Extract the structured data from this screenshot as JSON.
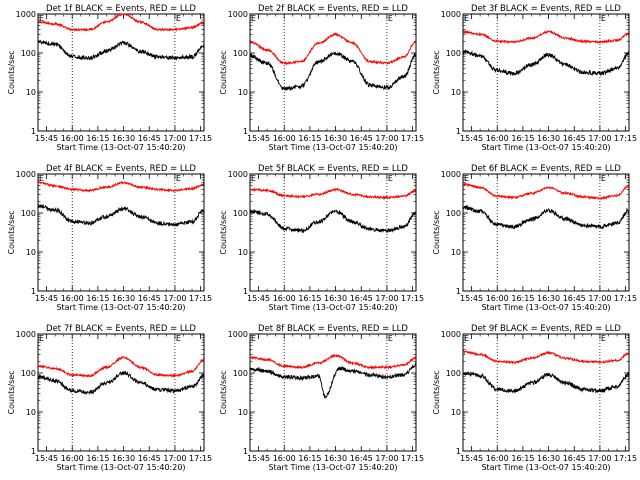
{
  "chart_data": [
    {
      "type": "line",
      "title": "Det 1f BLACK = Events, RED = LLD",
      "xlabel": "Start Time (13-Oct-07 15:40:20)",
      "ylabel": "Counts/sec",
      "x_ticks": [
        "15:45",
        "16:00",
        "16:15",
        "16:30",
        "16:45",
        "17:00",
        "17:15"
      ],
      "y_ticks": [
        "1",
        "10",
        "100",
        "1000"
      ],
      "ylim": [
        1,
        1000
      ],
      "yscale": "log",
      "markers": [
        {
          "time": "15:40",
          "label": "E"
        },
        {
          "time": "17:00",
          "label": "E"
        }
      ],
      "series": [
        {
          "color": "#ff0000",
          "x": [
            "15:40",
            "15:50",
            "16:00",
            "16:10",
            "16:20",
            "16:30",
            "16:40",
            "16:50",
            "17:00",
            "17:10",
            "17:17"
          ],
          "y": [
            620,
            560,
            400,
            400,
            620,
            1000,
            620,
            400,
            400,
            450,
            600
          ]
        },
        {
          "color": "#000000",
          "x": [
            "15:40",
            "15:50",
            "16:00",
            "16:10",
            "16:20",
            "16:30",
            "16:40",
            "16:50",
            "17:00",
            "17:10",
            "17:17"
          ],
          "y": [
            190,
            170,
            80,
            75,
            110,
            180,
            110,
            80,
            75,
            80,
            150
          ]
        }
      ]
    },
    {
      "type": "line",
      "title": "Det 2f BLACK = Events, RED = LLD",
      "xlabel": "Start Time (13-Oct-07 15:40:20)",
      "ylabel": "Counts/sec",
      "x_ticks": [
        "15:45",
        "16:00",
        "16:15",
        "16:30",
        "16:45",
        "17:00",
        "17:15"
      ],
      "y_ticks": [
        "1",
        "10",
        "100",
        "1000"
      ],
      "ylim": [
        1,
        1000
      ],
      "yscale": "log",
      "markers": [
        {
          "time": "15:40",
          "label": "E"
        },
        {
          "time": "17:00",
          "label": "E"
        }
      ],
      "series": [
        {
          "color": "#ff0000",
          "x": [
            "15:40",
            "15:50",
            "16:00",
            "16:10",
            "16:20",
            "16:30",
            "16:40",
            "16:50",
            "17:00",
            "17:10",
            "17:17"
          ],
          "y": [
            190,
            120,
            55,
            60,
            180,
            300,
            180,
            60,
            55,
            80,
            200
          ]
        },
        {
          "color": "#000000",
          "x": [
            "15:40",
            "15:50",
            "16:00",
            "16:10",
            "16:20",
            "16:30",
            "16:40",
            "16:50",
            "17:00",
            "17:10",
            "17:17"
          ],
          "y": [
            85,
            55,
            12,
            14,
            60,
            100,
            60,
            15,
            13,
            25,
            90
          ]
        }
      ]
    },
    {
      "type": "line",
      "title": "Det 3f BLACK = Events, RED = LLD",
      "xlabel": "Start Time (13-Oct-07 15:40:20)",
      "ylabel": "Counts/sec",
      "x_ticks": [
        "15:45",
        "16:00",
        "16:15",
        "16:30",
        "16:45",
        "17:00",
        "17:15"
      ],
      "y_ticks": [
        "1",
        "10",
        "100",
        "1000"
      ],
      "ylim": [
        1,
        1000
      ],
      "yscale": "log",
      "markers": [
        {
          "time": "15:40",
          "label": "E"
        },
        {
          "time": "17:00",
          "label": "E"
        }
      ],
      "series": [
        {
          "color": "#ff0000",
          "x": [
            "15:40",
            "15:50",
            "16:00",
            "16:10",
            "16:20",
            "16:30",
            "16:40",
            "16:50",
            "17:00",
            "17:10",
            "17:17"
          ],
          "y": [
            350,
            300,
            200,
            190,
            240,
            350,
            240,
            200,
            190,
            210,
            320
          ]
        },
        {
          "color": "#000000",
          "x": [
            "15:40",
            "15:50",
            "16:00",
            "16:10",
            "16:20",
            "16:30",
            "16:40",
            "16:50",
            "17:00",
            "17:10",
            "17:17"
          ],
          "y": [
            110,
            85,
            35,
            30,
            50,
            90,
            50,
            32,
            30,
            40,
            100
          ]
        }
      ]
    },
    {
      "type": "line",
      "title": "Det 4f BLACK = Events, RED = LLD",
      "xlabel": "Start Time (13-Oct-07 15:40:20)",
      "ylabel": "Counts/sec",
      "x_ticks": [
        "15:45",
        "16:00",
        "16:15",
        "16:30",
        "16:45",
        "17:00",
        "17:15"
      ],
      "y_ticks": [
        "1",
        "10",
        "100",
        "1000"
      ],
      "ylim": [
        1,
        1000
      ],
      "yscale": "log",
      "markers": [
        {
          "time": "15:40",
          "label": "E"
        },
        {
          "time": "17:00",
          "label": "E"
        }
      ],
      "series": [
        {
          "color": "#ff0000",
          "x": [
            "15:40",
            "15:50",
            "16:00",
            "16:10",
            "16:20",
            "16:30",
            "16:40",
            "16:50",
            "17:00",
            "17:10",
            "17:17"
          ],
          "y": [
            600,
            500,
            400,
            380,
            460,
            600,
            460,
            400,
            380,
            420,
            550
          ]
        },
        {
          "color": "#000000",
          "x": [
            "15:40",
            "15:50",
            "16:00",
            "16:10",
            "16:20",
            "16:30",
            "16:40",
            "16:50",
            "17:00",
            "17:10",
            "17:17"
          ],
          "y": [
            150,
            120,
            60,
            55,
            80,
            130,
            80,
            55,
            50,
            60,
            120
          ]
        }
      ]
    },
    {
      "type": "line",
      "title": "Det 5f BLACK = Events, RED = LLD",
      "xlabel": "Start Time (13-Oct-07 15:40:20)",
      "ylabel": "Counts/sec",
      "x_ticks": [
        "15:45",
        "16:00",
        "16:15",
        "16:30",
        "16:45",
        "17:00",
        "17:15"
      ],
      "y_ticks": [
        "1",
        "10",
        "100",
        "1000"
      ],
      "ylim": [
        1,
        1000
      ],
      "yscale": "log",
      "markers": [
        {
          "time": "15:40",
          "label": "E"
        },
        {
          "time": "17:00",
          "label": "E"
        }
      ],
      "series": [
        {
          "color": "#ff0000",
          "x": [
            "15:40",
            "15:50",
            "16:00",
            "16:10",
            "16:20",
            "16:30",
            "16:40",
            "16:50",
            "17:00",
            "17:10",
            "17:17"
          ],
          "y": [
            400,
            380,
            280,
            260,
            300,
            400,
            300,
            260,
            250,
            270,
            380
          ]
        },
        {
          "color": "#000000",
          "x": [
            "15:40",
            "15:50",
            "16:00",
            "16:10",
            "16:20",
            "16:30",
            "16:40",
            "16:50",
            "17:00",
            "17:10",
            "17:17"
          ],
          "y": [
            110,
            95,
            40,
            35,
            60,
            110,
            60,
            38,
            35,
            45,
            100
          ]
        }
      ]
    },
    {
      "type": "line",
      "title": "Det 6f BLACK = Events, RED = LLD",
      "xlabel": "Start Time (13-Oct-07 15:40:20)",
      "ylabel": "Counts/sec",
      "x_ticks": [
        "15:45",
        "16:00",
        "16:15",
        "16:30",
        "16:45",
        "17:00",
        "17:15"
      ],
      "y_ticks": [
        "1",
        "10",
        "100",
        "1000"
      ],
      "ylim": [
        1,
        1000
      ],
      "yscale": "log",
      "markers": [
        {
          "time": "15:40",
          "label": "E"
        },
        {
          "time": "17:00",
          "label": "E"
        }
      ],
      "series": [
        {
          "color": "#ff0000",
          "x": [
            "15:40",
            "15:50",
            "16:00",
            "16:10",
            "16:20",
            "16:30",
            "16:40",
            "16:50",
            "17:00",
            "17:10",
            "17:17"
          ],
          "y": [
            550,
            450,
            270,
            250,
            320,
            450,
            320,
            260,
            240,
            280,
            500
          ]
        },
        {
          "color": "#000000",
          "x": [
            "15:40",
            "15:50",
            "16:00",
            "16:10",
            "16:20",
            "16:30",
            "16:40",
            "16:50",
            "17:00",
            "17:10",
            "17:17"
          ],
          "y": [
            140,
            110,
            50,
            45,
            70,
            115,
            70,
            48,
            45,
            55,
            120
          ]
        }
      ]
    },
    {
      "type": "line",
      "title": "Det 7f BLACK = Events, RED = LLD",
      "xlabel": "Start Time (13-Oct-07 15:40:20)",
      "ylabel": "Counts/sec",
      "x_ticks": [
        "15:45",
        "16:00",
        "16:15",
        "16:30",
        "16:45",
        "17:00",
        "17:15"
      ],
      "y_ticks": [
        "1",
        "10",
        "100",
        "1000"
      ],
      "ylim": [
        1,
        1000
      ],
      "yscale": "log",
      "markers": [
        {
          "time": "15:40",
          "label": "E"
        },
        {
          "time": "17:00",
          "label": "E"
        }
      ],
      "series": [
        {
          "color": "#ff0000",
          "x": [
            "15:40",
            "15:50",
            "16:00",
            "16:10",
            "16:20",
            "16:30",
            "16:40",
            "16:50",
            "17:00",
            "17:10",
            "17:17"
          ],
          "y": [
            150,
            130,
            90,
            85,
            140,
            250,
            140,
            90,
            85,
            110,
            220
          ]
        },
        {
          "color": "#000000",
          "x": [
            "15:40",
            "15:50",
            "16:00",
            "16:10",
            "16:20",
            "16:30",
            "16:40",
            "16:50",
            "17:00",
            "17:10",
            "17:17"
          ],
          "y": [
            80,
            65,
            35,
            32,
            55,
            100,
            55,
            38,
            35,
            45,
            85
          ]
        }
      ]
    },
    {
      "type": "line",
      "title": "Det 8f BLACK = Events, RED = LLD",
      "xlabel": "Start Time (13-Oct-07 15:40:20)",
      "ylabel": "Counts/sec",
      "x_ticks": [
        "15:45",
        "16:00",
        "16:15",
        "16:30",
        "16:45",
        "17:00",
        "17:15"
      ],
      "y_ticks": [
        "1",
        "10",
        "100",
        "1000"
      ],
      "ylim": [
        1,
        1000
      ],
      "yscale": "log",
      "markers": [
        {
          "time": "15:40",
          "label": "E"
        },
        {
          "time": "17:00",
          "label": "E"
        }
      ],
      "series": [
        {
          "color": "#ff0000",
          "x": [
            "15:40",
            "15:50",
            "16:00",
            "16:10",
            "16:20",
            "16:30",
            "16:40",
            "16:50",
            "17:00",
            "17:10",
            "17:17"
          ],
          "y": [
            250,
            220,
            150,
            140,
            180,
            280,
            180,
            140,
            140,
            160,
            250
          ]
        },
        {
          "color": "#000000",
          "x": [
            "15:40",
            "15:50",
            "16:00",
            "16:10",
            "16:20",
            "16:24",
            "16:32",
            "16:40",
            "16:50",
            "17:00",
            "17:10",
            "17:17"
          ],
          "y": [
            130,
            110,
            80,
            75,
            85,
            25,
            130,
            110,
            90,
            80,
            90,
            160
          ]
        }
      ]
    },
    {
      "type": "line",
      "title": "Det 9f BLACK = Events, RED = LLD",
      "xlabel": "Start Time (13-Oct-07 15:40:20)",
      "ylabel": "Counts/sec",
      "x_ticks": [
        "15:45",
        "16:00",
        "16:15",
        "16:30",
        "16:45",
        "17:00",
        "17:15"
      ],
      "y_ticks": [
        "1",
        "10",
        "100",
        "1000"
      ],
      "ylim": [
        1,
        1000
      ],
      "yscale": "log",
      "markers": [
        {
          "time": "15:40",
          "label": "E"
        },
        {
          "time": "17:00",
          "label": "E"
        }
      ],
      "series": [
        {
          "color": "#ff0000",
          "x": [
            "15:40",
            "15:50",
            "16:00",
            "16:10",
            "16:20",
            "16:30",
            "16:40",
            "16:50",
            "17:00",
            "17:10",
            "17:17"
          ],
          "y": [
            350,
            300,
            200,
            190,
            240,
            330,
            240,
            200,
            190,
            210,
            320
          ]
        },
        {
          "color": "#000000",
          "x": [
            "15:40",
            "15:50",
            "16:00",
            "16:10",
            "16:20",
            "16:30",
            "16:40",
            "16:50",
            "17:00",
            "17:10",
            "17:17"
          ],
          "y": [
            100,
            85,
            38,
            35,
            55,
            90,
            55,
            38,
            35,
            45,
            95
          ]
        }
      ]
    }
  ]
}
